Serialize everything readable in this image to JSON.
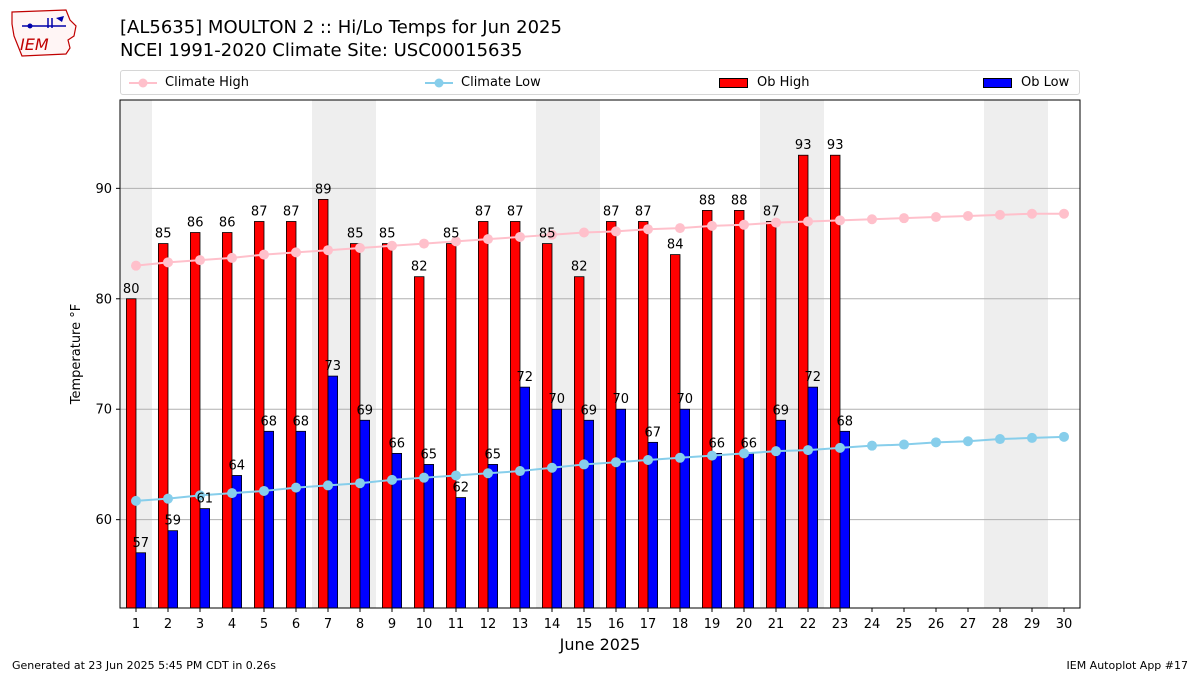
{
  "header": {
    "logo_text": "IEM",
    "title_line1": "[AL5635] MOULTON 2 :: Hi/Lo Temps for Jun 2025",
    "title_line2": "NCEI 1991-2020 Climate Site: USC00015635"
  },
  "footer": {
    "generated": "Generated at 23 Jun 2025 5:45 PM CDT in 0.26s",
    "app": "IEM Autoplot App #17"
  },
  "colors": {
    "ob_high": "#ff0000",
    "ob_low": "#0000ff",
    "climate_high": "#ffc0cb",
    "climate_low": "#87ceeb",
    "weekend_shade": "#eeeeee",
    "grid": "#b0b0b0"
  },
  "chart_data": {
    "type": "bar",
    "xlabel": "June 2025",
    "ylabel": "Temperature °F",
    "ylim": [
      52,
      98
    ],
    "yticks": [
      60,
      70,
      80,
      90
    ],
    "xlim": [
      0.5,
      30.5
    ],
    "grid": "horizontal",
    "legend_position": "top",
    "categories": [
      1,
      2,
      3,
      4,
      5,
      6,
      7,
      8,
      9,
      10,
      11,
      12,
      13,
      14,
      15,
      16,
      17,
      18,
      19,
      20,
      21,
      22,
      23,
      24,
      25,
      26,
      27,
      28,
      29,
      30
    ],
    "weekend_days": [
      1,
      7,
      8,
      14,
      15,
      21,
      22,
      28,
      29
    ],
    "series": [
      {
        "name": "Climate High",
        "type": "line",
        "values": [
          83.0,
          83.3,
          83.5,
          83.7,
          84.0,
          84.2,
          84.4,
          84.6,
          84.8,
          85.0,
          85.2,
          85.4,
          85.6,
          85.8,
          86.0,
          86.1,
          86.3,
          86.4,
          86.6,
          86.7,
          86.9,
          87.0,
          87.1,
          87.2,
          87.3,
          87.4,
          87.5,
          87.6,
          87.7,
          87.7
        ]
      },
      {
        "name": "Climate Low",
        "type": "line",
        "values": [
          61.7,
          61.9,
          62.2,
          62.4,
          62.6,
          62.9,
          63.1,
          63.3,
          63.6,
          63.8,
          64.0,
          64.2,
          64.4,
          64.7,
          65.0,
          65.2,
          65.4,
          65.6,
          65.8,
          66.0,
          66.2,
          66.3,
          66.5,
          66.7,
          66.8,
          67.0,
          67.1,
          67.3,
          67.4,
          67.5
        ]
      },
      {
        "name": "Ob High",
        "type": "bar",
        "values": [
          80,
          85,
          86,
          86,
          87,
          87,
          89,
          85,
          85,
          82,
          85,
          87,
          87,
          85,
          82,
          87,
          87,
          84,
          88,
          88,
          87,
          93,
          93,
          null,
          null,
          null,
          null,
          null,
          null,
          null
        ]
      },
      {
        "name": "Ob Low",
        "type": "bar",
        "values": [
          57,
          59,
          61,
          64,
          68,
          68,
          73,
          69,
          66,
          65,
          62,
          65,
          72,
          70,
          69,
          70,
          67,
          70,
          66,
          66,
          69,
          72,
          68,
          null,
          null,
          null,
          null,
          null,
          null,
          null
        ]
      }
    ]
  }
}
